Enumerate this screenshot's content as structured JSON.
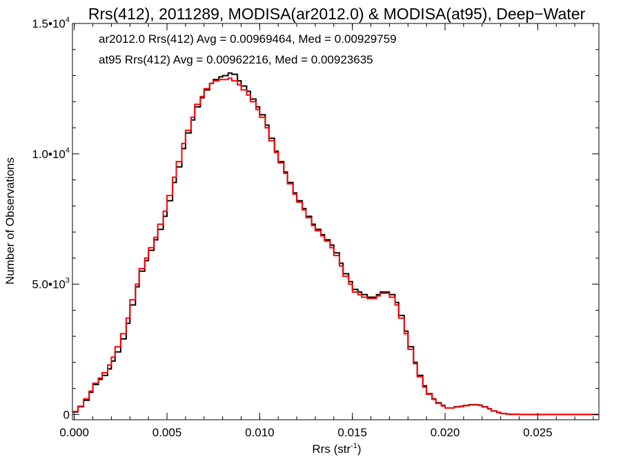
{
  "chart_data": {
    "type": "line",
    "title": "Rrs(412), 2011289, MODISA(ar2012.0) & MODISA(at95), Deep−Water",
    "xlabel": "Rrs (str",
    "xlabel_sup": "-1",
    "xlabel_suffix": ")",
    "ylabel": "Number of Observations",
    "xlim": [
      -0.0001,
      0.0283
    ],
    "ylim": [
      -200,
      15000
    ],
    "grid": false,
    "x_ticks": [
      {
        "value": 0.0,
        "label": "0.000"
      },
      {
        "value": 0.005,
        "label": "0.005"
      },
      {
        "value": 0.01,
        "label": "0.010"
      },
      {
        "value": 0.015,
        "label": "0.015"
      },
      {
        "value": 0.02,
        "label": "0.020"
      },
      {
        "value": 0.025,
        "label": "0.025"
      }
    ],
    "y_ticks": [
      {
        "value": 0,
        "base": "0",
        "exp": ""
      },
      {
        "value": 5000,
        "base": "5.0•10",
        "exp": "3"
      },
      {
        "value": 10000,
        "base": "1.0•10",
        "exp": "4"
      },
      {
        "value": 15000,
        "base": "1.5•10",
        "exp": "4"
      }
    ],
    "annotations": [
      {
        "text": "ar2012.0 Rrs(412) Avg = 0.00969464, Med = 0.00929759",
        "color": "#000000"
      },
      {
        "text": "at95 Rrs(412) Avg = 0.00962216, Med = 0.00923635",
        "color": "#ff0000"
      }
    ],
    "series": [
      {
        "color": "#000000",
        "style": "histogram-step",
        "x": [
          -0.0001,
          0.0002,
          0.0005,
          0.0008,
          0.001,
          0.0013,
          0.0015,
          0.0018,
          0.002,
          0.0022,
          0.0025,
          0.0028,
          0.003,
          0.0033,
          0.0035,
          0.0038,
          0.004,
          0.0043,
          0.0045,
          0.0048,
          0.005,
          0.0053,
          0.0055,
          0.0058,
          0.006,
          0.0063,
          0.0065,
          0.0068,
          0.007,
          0.0073,
          0.0075,
          0.0078,
          0.008,
          0.0083,
          0.0085,
          0.0088,
          0.009,
          0.0093,
          0.0095,
          0.0098,
          0.01,
          0.0103,
          0.0105,
          0.0108,
          0.011,
          0.0113,
          0.0115,
          0.0118,
          0.012,
          0.0123,
          0.0125,
          0.0128,
          0.013,
          0.0133,
          0.0135,
          0.0138,
          0.014,
          0.0143,
          0.0145,
          0.0148,
          0.015,
          0.0153,
          0.0155,
          0.0158,
          0.016,
          0.0163,
          0.0165,
          0.0168,
          0.017,
          0.0173,
          0.0175,
          0.0178,
          0.018,
          0.0183,
          0.0185,
          0.0188,
          0.019,
          0.0193,
          0.0195,
          0.0198,
          0.02,
          0.0203,
          0.0205,
          0.0208,
          0.021,
          0.0213,
          0.0215,
          0.0218,
          0.022,
          0.0223,
          0.0225,
          0.0228,
          0.023,
          0.0233,
          0.0235,
          0.024,
          0.025,
          0.026,
          0.027,
          0.0283
        ],
        "y": [
          100,
          300,
          550,
          850,
          1150,
          1350,
          1500,
          1750,
          2050,
          2400,
          2900,
          3500,
          4200,
          4900,
          5500,
          5900,
          6300,
          6700,
          7100,
          7600,
          8200,
          8900,
          9500,
          10200,
          10800,
          11300,
          11800,
          12150,
          12450,
          12700,
          12850,
          12950,
          13000,
          13100,
          13050,
          12800,
          12600,
          12400,
          12100,
          11800,
          11500,
          11100,
          10600,
          10100,
          9700,
          9300,
          8900,
          8500,
          8200,
          7900,
          7600,
          7300,
          7100,
          6900,
          6700,
          6500,
          6200,
          5800,
          5400,
          5100,
          4800,
          4700,
          4600,
          4500,
          4500,
          4600,
          4700,
          4700,
          4600,
          4300,
          3800,
          3200,
          2600,
          2000,
          1500,
          1100,
          800,
          600,
          450,
          350,
          250,
          250,
          300,
          320,
          350,
          380,
          380,
          360,
          300,
          220,
          140,
          80,
          40,
          20,
          10,
          0,
          0,
          0,
          0,
          0
        ]
      },
      {
        "color": "#ff0000",
        "style": "histogram-step",
        "x": [
          -0.0001,
          0.0002,
          0.0005,
          0.0008,
          0.001,
          0.0013,
          0.0015,
          0.0018,
          0.002,
          0.0022,
          0.0025,
          0.0028,
          0.003,
          0.0033,
          0.0035,
          0.0038,
          0.004,
          0.0043,
          0.0045,
          0.0048,
          0.005,
          0.0053,
          0.0055,
          0.0058,
          0.006,
          0.0063,
          0.0065,
          0.0068,
          0.007,
          0.0073,
          0.0075,
          0.0078,
          0.008,
          0.0083,
          0.0085,
          0.0088,
          0.009,
          0.0093,
          0.0095,
          0.0098,
          0.01,
          0.0103,
          0.0105,
          0.0108,
          0.011,
          0.0113,
          0.0115,
          0.0118,
          0.012,
          0.0123,
          0.0125,
          0.0128,
          0.013,
          0.0133,
          0.0135,
          0.0138,
          0.014,
          0.0143,
          0.0145,
          0.0148,
          0.015,
          0.0153,
          0.0155,
          0.0158,
          0.016,
          0.0163,
          0.0165,
          0.0168,
          0.017,
          0.0173,
          0.0175,
          0.0178,
          0.018,
          0.0183,
          0.0185,
          0.0188,
          0.019,
          0.0193,
          0.0195,
          0.0198,
          0.02,
          0.0203,
          0.0205,
          0.0208,
          0.021,
          0.0213,
          0.0215,
          0.0218,
          0.022,
          0.0223,
          0.0225,
          0.0228,
          0.023,
          0.0233,
          0.0235,
          0.024,
          0.025,
          0.026,
          0.027,
          0.0283
        ],
        "y": [
          120,
          320,
          600,
          900,
          1200,
          1400,
          1600,
          1900,
          2200,
          2600,
          3100,
          3700,
          4400,
          5000,
          5600,
          6000,
          6400,
          6800,
          7300,
          7800,
          8400,
          9100,
          9700,
          10400,
          10900,
          11400,
          11900,
          12200,
          12500,
          12700,
          12800,
          12850,
          12850,
          12900,
          12800,
          12650,
          12450,
          12250,
          12000,
          11700,
          11400,
          11000,
          10500,
          10050,
          9650,
          9250,
          8850,
          8450,
          8150,
          7850,
          7550,
          7250,
          7050,
          6850,
          6650,
          6400,
          6100,
          5700,
          5300,
          5000,
          4700,
          4600,
          4500,
          4450,
          4450,
          4550,
          4650,
          4650,
          4500,
          4200,
          3700,
          3100,
          2500,
          1950,
          1450,
          1050,
          780,
          580,
          430,
          330,
          250,
          250,
          290,
          310,
          340,
          370,
          370,
          350,
          290,
          210,
          130,
          70,
          35,
          15,
          8,
          0,
          0,
          0,
          0,
          0
        ]
      }
    ]
  }
}
